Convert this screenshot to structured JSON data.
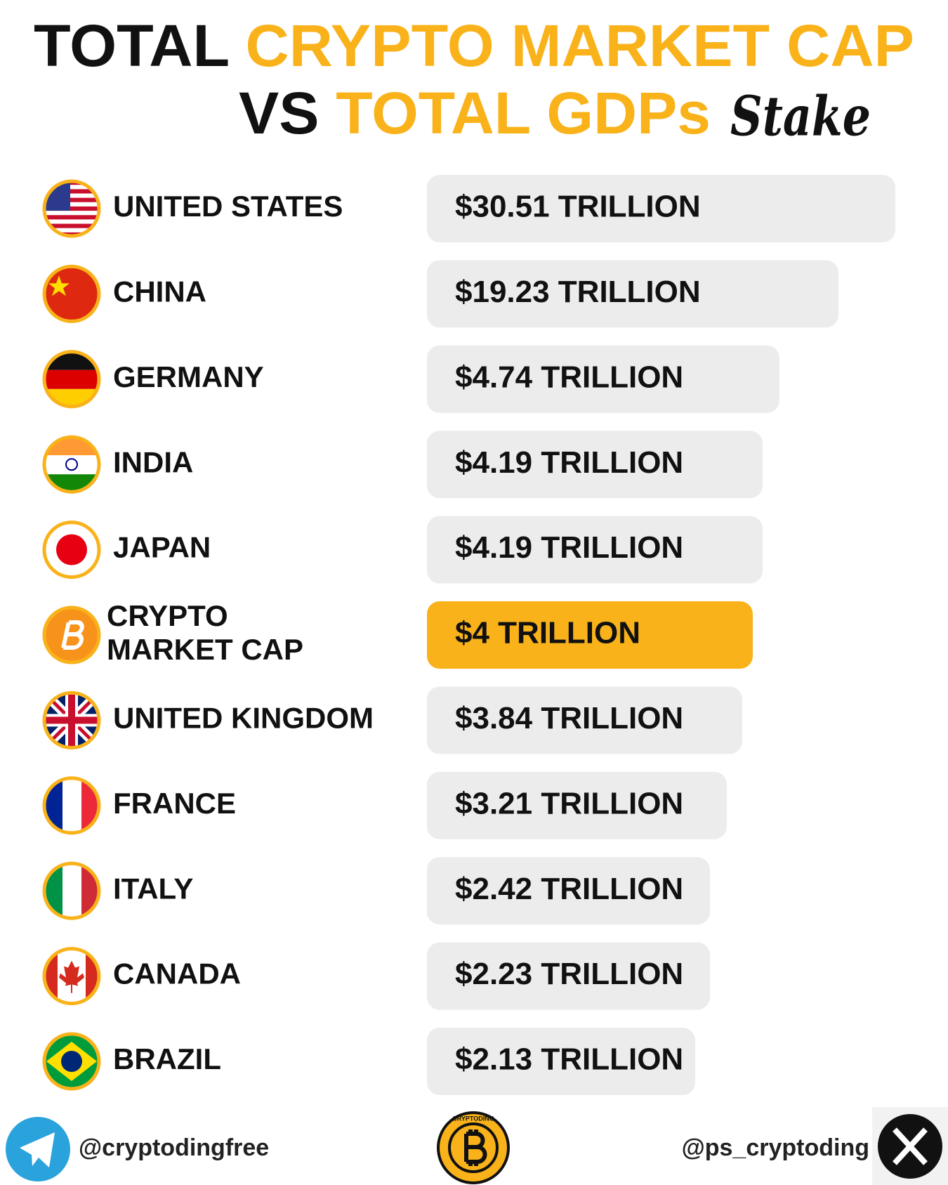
{
  "header": {
    "title_parts": [
      "TOTAL",
      "CRYPTO MARKET CAP",
      "VS",
      "TOTAL GDPs"
    ],
    "logo": "Stake"
  },
  "rows": [
    {
      "label": "UNITED STATES",
      "value": "$30.51 TRILLION"
    },
    {
      "label": "CHINA",
      "value": "$19.23 TRILLION"
    },
    {
      "label": "GERMANY",
      "value": "$4.74 TRILLION"
    },
    {
      "label": "INDIA",
      "value": "$4.19 TRILLION"
    },
    {
      "label": "JAPAN",
      "value": "$4.19 TRILLION"
    },
    {
      "label": "CRYPTO MARKET CAP",
      "value": "$4 TRILLION"
    },
    {
      "label": "UNITED KINGDOM",
      "value": "$3.84 TRILLION"
    },
    {
      "label": "FRANCE",
      "value": "$3.21 TRILLION"
    },
    {
      "label": "ITALY",
      "value": "$2.42 TRILLION"
    },
    {
      "label": "CANADA",
      "value": "$2.23 TRILLION"
    },
    {
      "label": "BRAZIL",
      "value": "$2.13 TRILLION"
    }
  ],
  "footer": {
    "telegram": "@cryptodingfree",
    "coin_text": "CRYPTODING",
    "x_handle": "@ps_cryptoding"
  }
}
